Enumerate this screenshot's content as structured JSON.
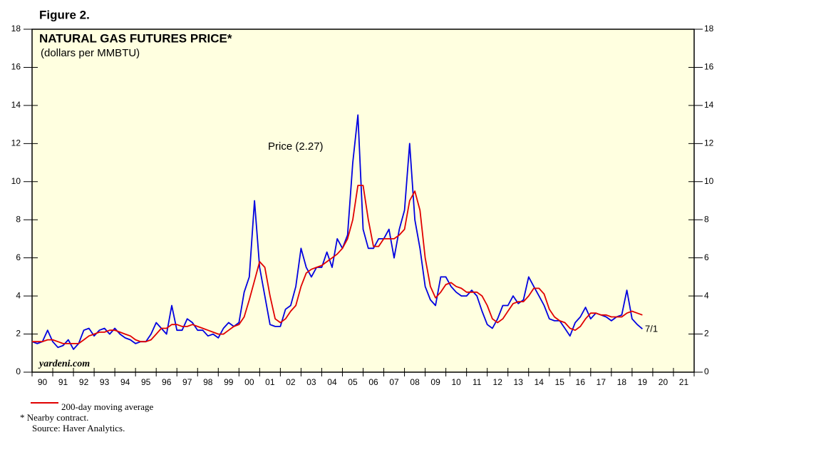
{
  "chart_data": {
    "type": "line",
    "figure_label": "Figure 2.",
    "title": "NATURAL GAS FUTURES PRICE*",
    "subtitle": "(dollars per MMBTU)",
    "annotation": "Price (2.27)",
    "end_label": "7/1",
    "watermark": "yardeni.com",
    "footnote": "*  Nearby contract.",
    "source": "Source: Haver Analytics.",
    "x": [
      1990,
      1990.25,
      1990.5,
      1990.75,
      1991,
      1991.25,
      1991.5,
      1991.75,
      1992,
      1992.25,
      1992.5,
      1992.75,
      1993,
      1993.25,
      1993.5,
      1993.75,
      1994,
      1994.25,
      1994.5,
      1994.75,
      1995,
      1995.25,
      1995.5,
      1995.75,
      1996,
      1996.25,
      1996.5,
      1996.75,
      1997,
      1997.25,
      1997.5,
      1997.75,
      1998,
      1998.25,
      1998.5,
      1998.75,
      1999,
      1999.25,
      1999.5,
      1999.75,
      2000,
      2000.25,
      2000.5,
      2000.75,
      2001,
      2001.25,
      2001.5,
      2001.75,
      2002,
      2002.25,
      2002.5,
      2002.75,
      2003,
      2003.25,
      2003.5,
      2003.75,
      2004,
      2004.25,
      2004.5,
      2004.75,
      2005,
      2005.25,
      2005.5,
      2005.75,
      2006,
      2006.25,
      2006.5,
      2006.75,
      2007,
      2007.25,
      2007.5,
      2007.75,
      2008,
      2008.25,
      2008.5,
      2008.75,
      2009,
      2009.25,
      2009.5,
      2009.75,
      2010,
      2010.25,
      2010.5,
      2010.75,
      2011,
      2011.25,
      2011.5,
      2011.75,
      2012,
      2012.25,
      2012.5,
      2012.75,
      2013,
      2013.25,
      2013.5,
      2013.75,
      2014,
      2014.25,
      2014.5,
      2014.75,
      2015,
      2015.25,
      2015.5,
      2015.75,
      2016,
      2016.25,
      2016.5,
      2016.75,
      2017,
      2017.25,
      2017.5,
      2017.75,
      2018,
      2018.25,
      2018.5,
      2018.75,
      2019,
      2019.25,
      2019.5
    ],
    "series": [
      {
        "color": "#0000e0",
        "values": [
          1.6,
          1.5,
          1.6,
          2.2,
          1.6,
          1.3,
          1.4,
          1.7,
          1.2,
          1.5,
          2.2,
          2.3,
          1.9,
          2.2,
          2.3,
          2.0,
          2.3,
          2.0,
          1.8,
          1.7,
          1.5,
          1.6,
          1.6,
          2.0,
          2.6,
          2.3,
          2.0,
          3.5,
          2.2,
          2.2,
          2.8,
          2.6,
          2.2,
          2.2,
          1.9,
          2.0,
          1.8,
          2.3,
          2.6,
          2.4,
          2.6,
          4.2,
          5.0,
          9.0,
          5.5,
          4.0,
          2.5,
          2.4,
          2.4,
          3.3,
          3.5,
          4.5,
          6.5,
          5.5,
          5.0,
          5.5,
          5.5,
          6.3,
          5.5,
          7.0,
          6.5,
          7.2,
          11.0,
          13.5,
          7.5,
          6.5,
          6.5,
          7.0,
          7.0,
          7.5,
          6.0,
          7.5,
          8.5,
          12.0,
          8.0,
          6.5,
          4.5,
          3.8,
          3.5,
          5.0,
          5.0,
          4.5,
          4.2,
          4.0,
          4.0,
          4.3,
          4.0,
          3.2,
          2.5,
          2.3,
          2.8,
          3.5,
          3.5,
          4.0,
          3.6,
          3.8,
          5.0,
          4.5,
          4.0,
          3.5,
          2.8,
          2.7,
          2.7,
          2.3,
          1.9,
          2.6,
          2.9,
          3.4,
          2.8,
          3.1,
          3.0,
          2.9,
          2.7,
          2.9,
          3.0,
          4.3,
          2.8,
          2.5,
          2.27
        ]
      },
      {
        "name": "200-day moving average",
        "color": "#e00000",
        "values": [
          1.6,
          1.6,
          1.6,
          1.7,
          1.7,
          1.6,
          1.5,
          1.5,
          1.5,
          1.5,
          1.7,
          1.9,
          2.0,
          2.1,
          2.1,
          2.2,
          2.2,
          2.1,
          2.0,
          1.9,
          1.7,
          1.6,
          1.6,
          1.7,
          2.0,
          2.3,
          2.3,
          2.5,
          2.5,
          2.4,
          2.4,
          2.5,
          2.4,
          2.3,
          2.2,
          2.1,
          2.0,
          2.0,
          2.2,
          2.4,
          2.5,
          2.9,
          3.8,
          4.8,
          5.8,
          5.5,
          4.0,
          2.8,
          2.6,
          2.8,
          3.2,
          3.5,
          4.5,
          5.2,
          5.4,
          5.5,
          5.6,
          5.8,
          6.0,
          6.2,
          6.5,
          7.0,
          8.0,
          9.8,
          9.8,
          8.0,
          6.6,
          6.6,
          7.0,
          7.0,
          7.0,
          7.2,
          7.5,
          9.0,
          9.5,
          8.5,
          6.0,
          4.5,
          3.9,
          4.2,
          4.6,
          4.7,
          4.5,
          4.4,
          4.2,
          4.2,
          4.2,
          4.0,
          3.5,
          2.8,
          2.6,
          2.8,
          3.2,
          3.6,
          3.7,
          3.7,
          4.0,
          4.4,
          4.4,
          4.1,
          3.3,
          2.9,
          2.7,
          2.6,
          2.3,
          2.2,
          2.4,
          2.8,
          3.1,
          3.1,
          3.0,
          3.0,
          2.9,
          2.9,
          2.9,
          3.1,
          3.2,
          3.1,
          3.0
        ]
      }
    ],
    "xlim": [
      1990,
      2022
    ],
    "xticks": [
      1990,
      1991,
      1992,
      1993,
      1994,
      1995,
      1996,
      1997,
      1998,
      1999,
      2000,
      2001,
      2002,
      2003,
      2004,
      2005,
      2006,
      2007,
      2008,
      2009,
      2010,
      2011,
      2012,
      2013,
      2014,
      2015,
      2016,
      2017,
      2018,
      2019,
      2020,
      2021,
      2022
    ],
    "xtick_labels": [
      {
        "value": 1990.5,
        "label": "90"
      },
      {
        "value": 1991.5,
        "label": "91"
      },
      {
        "value": 1992.5,
        "label": "92"
      },
      {
        "value": 1993.5,
        "label": "93"
      },
      {
        "value": 1994.5,
        "label": "94"
      },
      {
        "value": 1995.5,
        "label": "95"
      },
      {
        "value": 1996.5,
        "label": "96"
      },
      {
        "value": 1997.5,
        "label": "97"
      },
      {
        "value": 1998.5,
        "label": "98"
      },
      {
        "value": 1999.5,
        "label": "99"
      },
      {
        "value": 2000.5,
        "label": "00"
      },
      {
        "value": 2001.5,
        "label": "01"
      },
      {
        "value": 2002.5,
        "label": "02"
      },
      {
        "value": 2003.5,
        "label": "03"
      },
      {
        "value": 2004.5,
        "label": "04"
      },
      {
        "value": 2005.5,
        "label": "05"
      },
      {
        "value": 2006.5,
        "label": "06"
      },
      {
        "value": 2007.5,
        "label": "07"
      },
      {
        "value": 2008.5,
        "label": "08"
      },
      {
        "value": 2009.5,
        "label": "09"
      },
      {
        "value": 2010.5,
        "label": "10"
      },
      {
        "value": 2011.5,
        "label": "11"
      },
      {
        "value": 2012.5,
        "label": "12"
      },
      {
        "value": 2013.5,
        "label": "13"
      },
      {
        "value": 2014.5,
        "label": "14"
      },
      {
        "value": 2015.5,
        "label": "15"
      },
      {
        "value": 2016.5,
        "label": "16"
      },
      {
        "value": 2017.5,
        "label": "17"
      },
      {
        "value": 2018.5,
        "label": "18"
      },
      {
        "value": 2019.5,
        "label": "19"
      },
      {
        "value": 2020.5,
        "label": "20"
      },
      {
        "value": 2021.5,
        "label": "21"
      }
    ],
    "ylim": [
      0,
      18
    ],
    "yticks": [
      0,
      2,
      4,
      6,
      8,
      10,
      12,
      14,
      16,
      18
    ],
    "grid": false,
    "plot_background": "#ffffe0"
  }
}
